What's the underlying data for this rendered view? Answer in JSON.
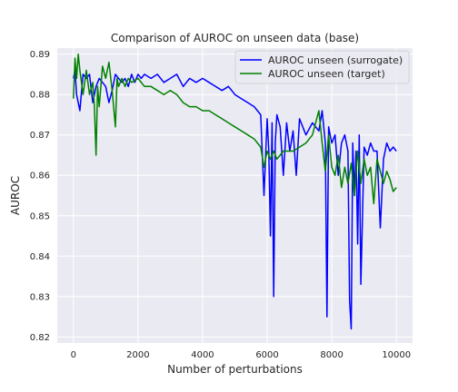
{
  "chart_data": {
    "type": "line",
    "title": "Comparison of AUROC on unseen data (base)",
    "xlabel": "Number of perturbations",
    "ylabel": "AUROC",
    "xlim": [
      -500,
      10500
    ],
    "ylim": [
      0.8185,
      0.8915
    ],
    "xticks": [
      0,
      2000,
      4000,
      6000,
      8000,
      10000
    ],
    "yticks": [
      0.82,
      0.83,
      0.84,
      0.85,
      0.86,
      0.87,
      0.88,
      0.89
    ],
    "grid": true,
    "legend_position": "top-right",
    "series": [
      {
        "name": "AUROC unseen (surrogate)",
        "color": "#0000ff",
        "x": [
          0,
          50,
          100,
          200,
          300,
          400,
          500,
          600,
          700,
          800,
          900,
          1000,
          1100,
          1200,
          1300,
          1400,
          1500,
          1600,
          1700,
          1800,
          1900,
          2000,
          2100,
          2200,
          2400,
          2600,
          2800,
          3000,
          3200,
          3400,
          3600,
          3800,
          4000,
          4200,
          4400,
          4600,
          4800,
          5000,
          5200,
          5400,
          5600,
          5800,
          5900,
          6000,
          6050,
          6100,
          6150,
          6200,
          6250,
          6300,
          6400,
          6500,
          6600,
          6700,
          6800,
          6900,
          7000,
          7200,
          7400,
          7600,
          7700,
          7800,
          7850,
          7900,
          8000,
          8100,
          8200,
          8300,
          8400,
          8500,
          8550,
          8600,
          8650,
          8700,
          8750,
          8800,
          8850,
          8900,
          9000,
          9100,
          9200,
          9300,
          9400,
          9500,
          9600,
          9700,
          9800,
          9900,
          10000
        ],
        "y": [
          0.884,
          0.886,
          0.88,
          0.876,
          0.885,
          0.884,
          0.885,
          0.878,
          0.882,
          0.884,
          0.883,
          0.882,
          0.878,
          0.881,
          0.885,
          0.884,
          0.883,
          0.884,
          0.882,
          0.885,
          0.883,
          0.885,
          0.884,
          0.885,
          0.884,
          0.885,
          0.883,
          0.884,
          0.885,
          0.882,
          0.884,
          0.883,
          0.884,
          0.883,
          0.882,
          0.881,
          0.882,
          0.88,
          0.879,
          0.878,
          0.877,
          0.875,
          0.855,
          0.874,
          0.866,
          0.845,
          0.873,
          0.83,
          0.868,
          0.875,
          0.872,
          0.86,
          0.873,
          0.866,
          0.871,
          0.86,
          0.874,
          0.87,
          0.873,
          0.871,
          0.876,
          0.868,
          0.825,
          0.872,
          0.868,
          0.87,
          0.86,
          0.868,
          0.87,
          0.866,
          0.829,
          0.822,
          0.868,
          0.855,
          0.866,
          0.843,
          0.87,
          0.833,
          0.867,
          0.865,
          0.868,
          0.866,
          0.866,
          0.847,
          0.864,
          0.868,
          0.866,
          0.867,
          0.866
        ]
      },
      {
        "name": "AUROC unseen (target)",
        "color": "#008000",
        "x": [
          0,
          50,
          100,
          150,
          200,
          300,
          400,
          500,
          600,
          650,
          700,
          750,
          800,
          900,
          1000,
          1100,
          1200,
          1300,
          1350,
          1400,
          1500,
          1600,
          1700,
          1800,
          2000,
          2200,
          2400,
          2600,
          2800,
          3000,
          3200,
          3400,
          3600,
          3800,
          4000,
          4200,
          4400,
          4600,
          4800,
          5000,
          5200,
          5400,
          5600,
          5800,
          5900,
          6000,
          6100,
          6200,
          6300,
          6400,
          6500,
          6600,
          6800,
          7000,
          7200,
          7400,
          7600,
          7700,
          7800,
          7900,
          8000,
          8100,
          8200,
          8300,
          8400,
          8500,
          8600,
          8700,
          8800,
          8900,
          9000,
          9100,
          9200,
          9300,
          9400,
          9500,
          9600,
          9700,
          9800,
          9900,
          10000
        ],
        "y": [
          0.879,
          0.889,
          0.884,
          0.89,
          0.886,
          0.88,
          0.886,
          0.88,
          0.883,
          0.877,
          0.865,
          0.882,
          0.877,
          0.887,
          0.884,
          0.888,
          0.881,
          0.872,
          0.884,
          0.882,
          0.884,
          0.882,
          0.884,
          0.883,
          0.884,
          0.882,
          0.882,
          0.881,
          0.88,
          0.881,
          0.88,
          0.878,
          0.877,
          0.877,
          0.876,
          0.876,
          0.875,
          0.874,
          0.873,
          0.872,
          0.871,
          0.87,
          0.869,
          0.867,
          0.862,
          0.866,
          0.864,
          0.866,
          0.864,
          0.865,
          0.866,
          0.866,
          0.866,
          0.867,
          0.868,
          0.87,
          0.876,
          0.868,
          0.861,
          0.87,
          0.862,
          0.86,
          0.865,
          0.857,
          0.862,
          0.858,
          0.863,
          0.855,
          0.866,
          0.858,
          0.864,
          0.86,
          0.862,
          0.853,
          0.864,
          0.861,
          0.858,
          0.861,
          0.859,
          0.856,
          0.857
        ]
      }
    ]
  }
}
